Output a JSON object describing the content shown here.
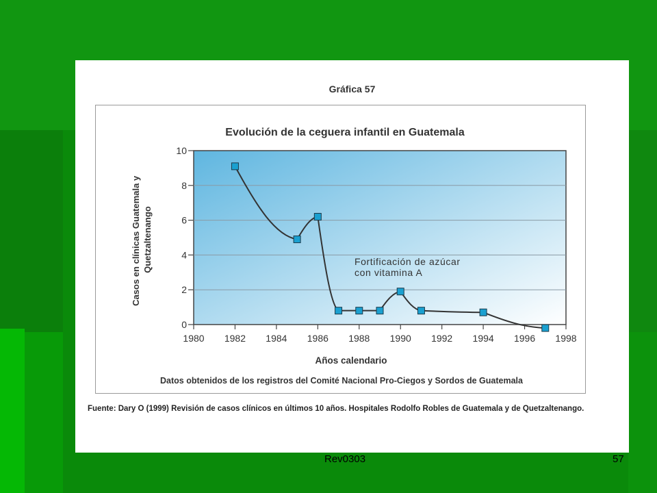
{
  "slide": {
    "footer_left": "Rev0303",
    "footer_right": "57"
  },
  "figure": {
    "heading": "Gráfica 57",
    "source": "Fuente: Dary O (1999) Revisión de casos clínicos en últimos 10 años.  Hospitales Rodolfo Robles de Guatemala y de Quetzaltenango."
  },
  "chart_data": {
    "type": "line",
    "title": "Evolución de la ceguera infantil en Guatemala",
    "xlabel": "Años calendario",
    "ylabel": "Casos en clínicas Guatemala y Quetzaltenango",
    "note": "Datos obtenidos de los registros del Comité Nacional Pro-Ciegos y Sordos de Guatemala",
    "annotation": [
      "Fortificación de azúcar",
      "con vitamina A"
    ],
    "xlim": [
      1980,
      1998
    ],
    "ylim": [
      0,
      10
    ],
    "xticks": [
      "1980",
      "1982",
      "1984",
      "1986",
      "1988",
      "1990",
      "1992",
      "1994",
      "1996",
      "1998"
    ],
    "yticks": [
      "0",
      "2",
      "4",
      "6",
      "8",
      "10"
    ],
    "grid": true,
    "series": [
      {
        "x": [
          1982,
          1985,
          1986,
          1987,
          1988,
          1989,
          1990,
          1991,
          1994,
          1997
        ],
        "y": [
          9.1,
          4.9,
          6.2,
          0.8,
          0.8,
          0.8,
          1.9,
          0.8,
          0.7,
          -0.2
        ]
      }
    ]
  },
  "colors": {
    "line": "#333333",
    "marker": "#1aa0d0",
    "plot_bg_top": "#5fb6e0",
    "plot_bg_bottom": "#ffffff"
  }
}
